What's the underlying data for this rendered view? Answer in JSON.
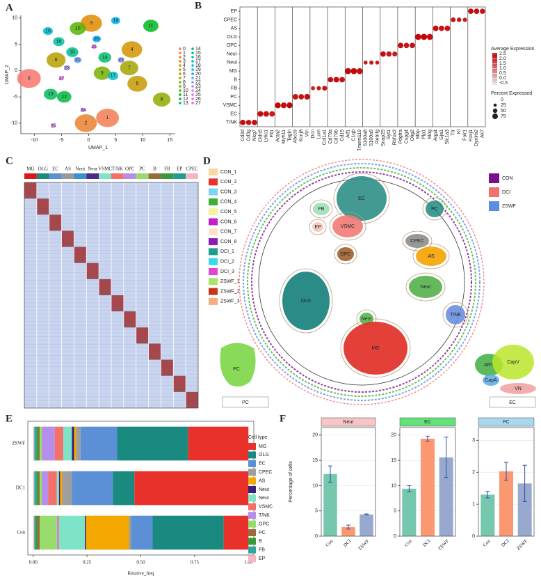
{
  "chart_data": [
    {
      "panel": "A",
      "type": "scatter",
      "xlabel": "UMAP_1",
      "ylabel": "UMAP_2",
      "xlim": [
        -12.5,
        16
      ],
      "ylim": [
        -12,
        10.5
      ],
      "xticks": [
        -10,
        -5,
        0,
        5,
        10,
        15
      ],
      "yticks": [
        -10,
        -5,
        0,
        5,
        10
      ],
      "series": [
        {
          "name": "0",
          "color": "#F8766D",
          "x": [
            -11.0
          ],
          "values": [
            -1.5
          ]
        },
        {
          "name": "1",
          "color": "#F27D52",
          "x": [
            3.5
          ],
          "values": [
            -9.0
          ]
        },
        {
          "name": "2",
          "color": "#EA8331",
          "x": [
            -0.5
          ],
          "values": [
            -10.0
          ]
        },
        {
          "name": "3",
          "color": "#E08B00",
          "x": [
            0.5
          ],
          "values": [
            9.0
          ]
        },
        {
          "name": "4",
          "color": "#D39200",
          "x": [
            8.0
          ],
          "values": [
            4.0
          ]
        },
        {
          "name": "5",
          "color": "#C59900",
          "x": [
            9.0
          ],
          "values": [
            -2.5
          ]
        },
        {
          "name": "6",
          "color": "#B79F00",
          "x": [
            -6.0
          ],
          "values": [
            2.0
          ]
        },
        {
          "name": "7",
          "color": "#A3A500",
          "x": [
            7.5
          ],
          "values": [
            0.5
          ]
        },
        {
          "name": "8",
          "color": "#8EAB00",
          "x": [
            13.5
          ],
          "values": [
            -5.5
          ]
        },
        {
          "name": "9",
          "color": "#74B000",
          "x": [
            2.5
          ],
          "values": [
            -0.5
          ]
        },
        {
          "name": "10",
          "color": "#53B400",
          "x": [
            -2.0
          ],
          "values": [
            8.0
          ]
        },
        {
          "name": "11",
          "color": "#00B81F",
          "x": [
            11.5
          ],
          "values": [
            8.5
          ]
        },
        {
          "name": "12",
          "color": "#00BA42",
          "x": [
            -4.5
          ],
          "values": [
            -5.0
          ]
        },
        {
          "name": "13",
          "color": "#00BC59",
          "x": [
            -7.0
          ],
          "values": [
            -4.5
          ]
        },
        {
          "name": "14",
          "color": "#00BE6C",
          "x": [
            3.0
          ],
          "values": [
            2.5
          ]
        },
        {
          "name": "15",
          "color": "#00C08B",
          "x": [
            -3.0
          ],
          "values": [
            3.5
          ]
        },
        {
          "name": "16",
          "color": "#00C19F",
          "x": [
            -5.5
          ],
          "values": [
            5.5
          ]
        },
        {
          "name": "17",
          "color": "#00BFC4",
          "x": [
            4.5
          ],
          "values": [
            -1.0
          ]
        },
        {
          "name": "18",
          "color": "#00BBDA",
          "x": [
            -7.5
          ],
          "values": [
            7.5
          ]
        },
        {
          "name": "19",
          "color": "#00B4EF",
          "x": [
            5.0
          ],
          "values": [
            9.5
          ]
        },
        {
          "name": "20",
          "color": "#00ABFD",
          "x": [
            1.5
          ],
          "values": [
            6.0
          ]
        },
        {
          "name": "21",
          "color": "#619CFF",
          "x": [
            -2.0
          ],
          "values": [
            2.0
          ]
        },
        {
          "name": "22",
          "color": "#8F91FF",
          "x": [
            6.0
          ],
          "values": [
            2.0
          ]
        },
        {
          "name": "23",
          "color": "#AE87FF",
          "x": [
            -4.0
          ],
          "values": [
            0.5
          ]
        },
        {
          "name": "24",
          "color": "#C77CFF",
          "x": [
            -1.0
          ],
          "values": [
            -7.5
          ]
        },
        {
          "name": "25",
          "color": "#DB72FB",
          "x": [
            -6.5
          ],
          "values": [
            -10.5
          ]
        },
        {
          "name": "26",
          "color": "#EA6AF1",
          "x": [
            1.0
          ],
          "values": [
            4.5
          ]
        },
        {
          "name": "27",
          "color": "#F564E3",
          "x": [
            -5.0
          ],
          "values": [
            -1.5
          ]
        }
      ]
    },
    {
      "panel": "B",
      "type": "dot",
      "color_range": [
        "#e6e6e6",
        "#c00000"
      ],
      "color_lim": [
        -0.7,
        2.6
      ],
      "color_title": "Average Expression",
      "color_ticks": [
        2.5,
        {
          "value": 2,
          "label": "2.0"
        },
        1.5,
        {
          "value": 1,
          "label": "1.0"
        },
        0.5,
        {
          "value": 0,
          "label": "0.0"
        },
        -0.5
      ],
      "size_title": "Percent Expressed",
      "size_ticks": [
        0,
        25,
        50,
        75
      ],
      "series": [
        {
          "name": "T/NK",
          "genes": [
            "Cd3d",
            "Cd3g",
            "Nkg7"
          ],
          "values": [
            70,
            68,
            72
          ],
          "avg": [
            2.4,
            2.3,
            2.4
          ]
        },
        {
          "name": "EC",
          "genes": [
            "Cldn5",
            "Ly6c1",
            "Flt1"
          ],
          "values": [
            80,
            78,
            75
          ],
          "avg": [
            2.4,
            2.3,
            2.2
          ]
        },
        {
          "name": "VSMC",
          "genes": [
            "Acta2",
            "Myh11",
            "Tagln"
          ],
          "values": [
            82,
            80,
            85
          ],
          "avg": [
            2.5,
            2.4,
            2.5
          ]
        },
        {
          "name": "PC",
          "genes": [
            "Abcc9",
            "Kcnj8",
            "Vtn"
          ],
          "values": [
            75,
            72,
            78
          ],
          "avg": [
            2.3,
            2.3,
            2.4
          ]
        },
        {
          "name": "FB",
          "genes": [
            "Dcn",
            "Lum",
            "Col1a1"
          ],
          "values": [
            40,
            45,
            60
          ],
          "avg": [
            2.1,
            2.2,
            2.3
          ]
        },
        {
          "name": "B",
          "genes": [
            "Cd79a",
            "Cd79b",
            "Cd19"
          ],
          "values": [
            70,
            78,
            74
          ],
          "avg": [
            2.4,
            2.4,
            2.3
          ]
        },
        {
          "name": "MG",
          "genes": [
            "Aif1",
            "C1qb",
            "Tmem119"
          ],
          "values": [
            90,
            92,
            88
          ],
          "avg": [
            2.5,
            2.5,
            2.4
          ]
        },
        {
          "name": "Neut",
          "genes": [
            "S100a8",
            "S100a9",
            "Retnlg"
          ],
          "values": [
            40,
            42,
            38
          ],
          "avg": [
            2.2,
            2.3,
            2.2
          ]
        },
        {
          "name": "Neur",
          "genes": [
            "Snap25",
            "Syt1",
            "Rbfox3"
          ],
          "values": [
            72,
            68,
            60
          ],
          "avg": [
            2.4,
            2.3,
            2.2
          ]
        },
        {
          "name": "OPC",
          "genes": [
            "Pdgfra",
            "Cspg4",
            "Olig2"
          ],
          "values": [
            75,
            70,
            72
          ],
          "avg": [
            2.4,
            2.3,
            2.3
          ]
        },
        {
          "name": "OLG",
          "genes": [
            "Mbp",
            "Plp1",
            "Mog"
          ],
          "values": [
            92,
            94,
            90
          ],
          "avg": [
            2.5,
            2.5,
            2.4
          ]
        },
        {
          "name": "AS",
          "genes": [
            "Aqp4",
            "Gja1",
            "Slc1a3"
          ],
          "values": [
            78,
            72,
            74
          ],
          "avg": [
            2.4,
            2.3,
            2.3
          ]
        },
        {
          "name": "CPEC",
          "genes": [
            "Ttr",
            "Kl",
            "Folr1"
          ],
          "values": [
            55,
            50,
            45
          ],
          "avg": [
            2.3,
            2.2,
            2.2
          ]
        },
        {
          "name": "EP",
          "genes": [
            "Foxj1",
            "Dynlrb2",
            "Ak7"
          ],
          "values": [
            70,
            72,
            68
          ],
          "avg": [
            2.4,
            2.4,
            2.3
          ]
        }
      ]
    },
    {
      "panel": "C",
      "type": "heatmap",
      "columns": [
        {
          "name": "MG",
          "color": "#d7191c"
        },
        {
          "name": "OLG",
          "color": "#1a8a7a"
        },
        {
          "name": "EC",
          "color": "#5b8fd6"
        },
        {
          "name": "AS",
          "color": "#9a9a9a"
        },
        {
          "name": "Neut",
          "color": "#3c8fd0"
        },
        {
          "name": "Neur",
          "color": "#4b2a8a"
        },
        {
          "name": "VSMC",
          "color": "#7fe3c8"
        },
        {
          "name": "T/NK",
          "color": "#f4716b"
        },
        {
          "name": "OPC",
          "color": "#b48ee8"
        },
        {
          "name": "PC",
          "color": "#98dc6e"
        },
        {
          "name": "B",
          "color": "#9a6b3a"
        },
        {
          "name": "FB",
          "color": "#3a9a3a"
        },
        {
          "name": "EP",
          "color": "#1f9e8e"
        },
        {
          "name": "CPEC",
          "color": "#f8b4c0"
        }
      ]
    },
    {
      "panel": "D",
      "type": "embedding",
      "clusters": [
        {
          "name": "EC",
          "color": "#2e8f86"
        },
        {
          "name": "PC",
          "color": "#2e8f86"
        },
        {
          "name": "FB",
          "color": "#9fe0b5"
        },
        {
          "name": "EP",
          "color": "#f3c6bb"
        },
        {
          "name": "VSMC",
          "color": "#f27b76"
        },
        {
          "name": "CPEC",
          "color": "#8d8d8d"
        },
        {
          "name": "AS",
          "color": "#f5a300"
        },
        {
          "name": "OPC",
          "color": "#a0602e"
        },
        {
          "name": "OLG",
          "color": "#147f7a"
        },
        {
          "name": "Neur",
          "color": "#55b04a"
        },
        {
          "name": "Neut",
          "color": "#4fb848"
        },
        {
          "name": "T/NK",
          "color": "#6a8fdc"
        },
        {
          "name": "MG",
          "color": "#e02b25"
        }
      ],
      "samples": [
        {
          "name": "CON_1",
          "color": "#fbd7a4"
        },
        {
          "name": "CON_2",
          "color": "#e8312a"
        },
        {
          "name": "CON_3",
          "color": "#7fd3f0"
        },
        {
          "name": "CON_4",
          "color": "#3cb034"
        },
        {
          "name": "CON_5",
          "color": "#f6f2a2"
        },
        {
          "name": "CON_6",
          "color": "#c21fc9"
        },
        {
          "name": "CON_7",
          "color": "#fce4c8"
        },
        {
          "name": "CON_8",
          "color": "#8a1cb5"
        },
        {
          "name": "DCI_1",
          "color": "#1f9e8e"
        },
        {
          "name": "DCI_2",
          "color": "#3ed6e6"
        },
        {
          "name": "DCI_3",
          "color": "#e445d0"
        },
        {
          "name": "ZSWF_1",
          "color": "#a9e36c"
        },
        {
          "name": "ZSWF_2",
          "color": "#c8361a"
        },
        {
          "name": "ZSWF_3",
          "color": "#f2b080"
        }
      ],
      "groups": [
        {
          "name": "CON",
          "color": "#7b0f8a"
        },
        {
          "name": "DCI",
          "color": "#f07070"
        },
        {
          "name": "ZSWF",
          "color": "#5b8de0"
        }
      ],
      "insets": [
        {
          "title": "PC",
          "color": "#6ad12e"
        },
        {
          "title": "EC",
          "regions": [
            {
              "name": "ART",
              "color": "#3fae3f"
            },
            {
              "name": "CapV",
              "color": "#b8e62a"
            },
            {
              "name": "CapA",
              "color": "#5aa9e6"
            },
            {
              "name": "VN",
              "color": "#f0a0a0"
            }
          ]
        }
      ]
    },
    {
      "panel": "E",
      "type": "stacked_bar",
      "xlabel": "Relative_freq",
      "legend_title": "Cell type",
      "xlim": [
        -0.025,
        1.025
      ],
      "xticks": [
        {
          "value": 0,
          "label": "0.00"
        },
        0.25,
        {
          "value": 0.5,
          "label": "0.50"
        },
        0.75,
        {
          "value": 1,
          "label": "1.00"
        }
      ],
      "categories": [
        "ZSWF",
        "DC1",
        "Con"
      ],
      "series": [
        {
          "name": "MG",
          "color": "#e8312a",
          "values": [
            0.28,
            0.53,
            0.115
          ]
        },
        {
          "name": "OLG",
          "color": "#1a8a80",
          "values": [
            0.33,
            0.1,
            0.33
          ]
        },
        {
          "name": "EC",
          "color": "#5b8fd6",
          "values": [
            0.17,
            0.19,
            0.1
          ]
        },
        {
          "name": "CPEC",
          "color": "#9e9e9e",
          "values": [
            0.02,
            0.045,
            0.01
          ]
        },
        {
          "name": "AS",
          "color": "#f5a800",
          "values": [
            0.01,
            0.01,
            0.2
          ]
        },
        {
          "name": "Neut",
          "color": "#3b1f7a",
          "values": [
            0.01,
            0.005,
            0.005
          ]
        },
        {
          "name": "Neur",
          "color": "#7fe3c8",
          "values": [
            0.04,
            0.01,
            0.12
          ]
        },
        {
          "name": "VSMC",
          "color": "#f4716b",
          "values": [
            0.04,
            0.04,
            0.005
          ]
        },
        {
          "name": "T/NK",
          "color": "#b48ee8",
          "values": [
            0.06,
            0.03,
            0.005
          ]
        },
        {
          "name": "OPC",
          "color": "#98dc6e",
          "values": [
            0.01,
            0.01,
            0.08
          ]
        },
        {
          "name": "PC",
          "color": "#9a6b3a",
          "values": [
            0.005,
            0.005,
            0.01
          ]
        },
        {
          "name": "B",
          "color": "#3a9a3a",
          "values": [
            0.01,
            0.01,
            0.01
          ]
        },
        {
          "name": "FB",
          "color": "#2fa89c",
          "values": [
            0.01,
            0.01,
            0.005
          ]
        },
        {
          "name": "EP",
          "color": "#f8b4c0",
          "values": [
            0.005,
            0.005,
            0.005
          ]
        }
      ]
    },
    {
      "panel": "F",
      "type": "bar",
      "ylabel": "Percentage of cells",
      "categories": [
        "Con",
        "DCI",
        "ZSWF"
      ],
      "colors": [
        "#66c2a5",
        "#fc8d62",
        "#8da0cb"
      ],
      "facets": [
        {
          "title": "Neur",
          "strip_color": "#f8c4c4",
          "values": [
            12.3,
            1.8,
            4.3
          ],
          "errors": [
            1.6,
            0.4,
            0.1
          ],
          "ylim": [
            0,
            21.5
          ],
          "yticks": [
            0,
            5,
            10,
            15,
            20
          ]
        },
        {
          "title": "EC",
          "strip_color": "#66e07a",
          "values": [
            9.4,
            19.3,
            15.6
          ],
          "errors": [
            0.6,
            0.5,
            4.0
          ],
          "ylim": [
            0,
            21.5
          ],
          "yticks": [
            0,
            5,
            10,
            15,
            20
          ]
        },
        {
          "title": "PC",
          "strip_color": "#a8d8f0",
          "values": [
            1.3,
            2.03,
            1.65
          ],
          "errors": [
            0.1,
            0.28,
            0.57
          ],
          "ylim": [
            0,
            3.4
          ],
          "yticks": [
            0,
            1,
            2,
            3
          ]
        }
      ]
    }
  ]
}
